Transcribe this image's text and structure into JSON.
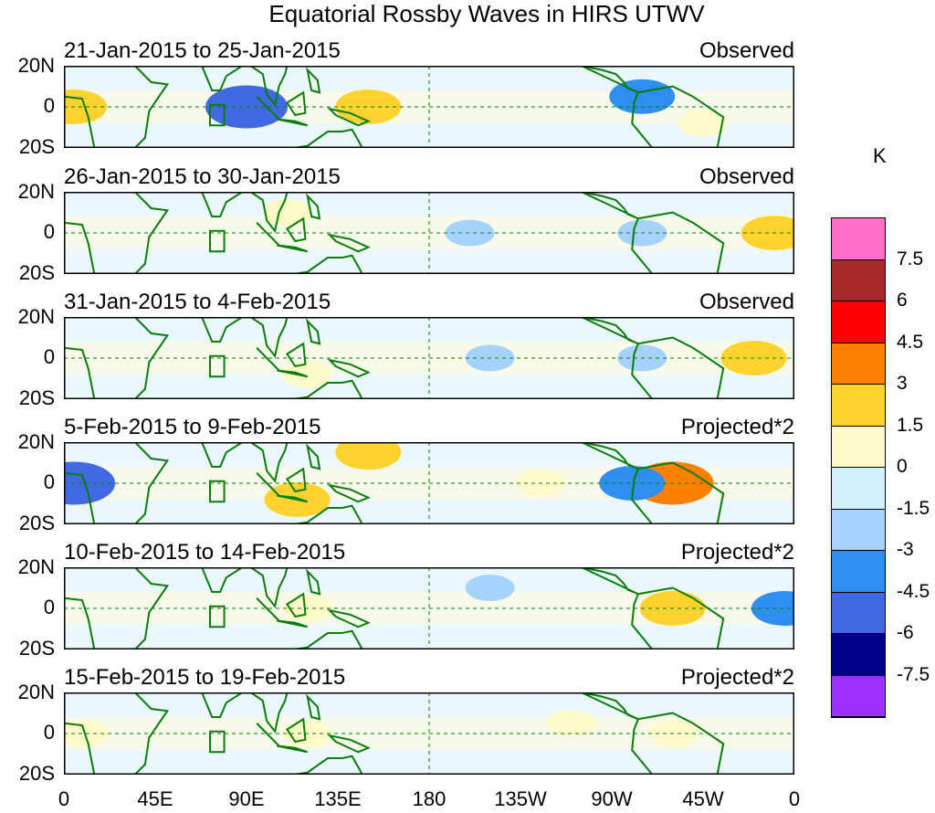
{
  "title": "Equatorial Rossby Waves in HIRS UTWV",
  "latitude_labels": [
    "20N",
    "0",
    "20S"
  ],
  "longitude_labels": [
    "0",
    "45E",
    "90E",
    "135E",
    "180",
    "135W",
    "90W",
    "45W",
    "0"
  ],
  "panels": [
    {
      "date_range": "21-Jan-2015 to 25-Jan-2015",
      "kind": "Observed",
      "anomalies": [
        {
          "lon": 90,
          "lat": 0,
          "v": -4.5
        },
        {
          "lon": 150,
          "lat": 0,
          "v": 3
        },
        {
          "lon": 285,
          "lat": 5,
          "v": -3
        },
        {
          "lon": 315,
          "lat": -8,
          "v": 1.5
        },
        {
          "lon": 5,
          "lat": 0,
          "v": 3
        }
      ]
    },
    {
      "date_range": "26-Jan-2015 to 30-Jan-2015",
      "kind": "Observed",
      "anomalies": [
        {
          "lon": 110,
          "lat": 10,
          "v": 1.5
        },
        {
          "lon": 200,
          "lat": 0,
          "v": -1.5
        },
        {
          "lon": 285,
          "lat": 0,
          "v": -1.5
        },
        {
          "lon": 350,
          "lat": 0,
          "v": 3
        }
      ]
    },
    {
      "date_range": "31-Jan-2015 to 4-Feb-2015",
      "kind": "Observed",
      "anomalies": [
        {
          "lon": 120,
          "lat": -8,
          "v": 1.5
        },
        {
          "lon": 210,
          "lat": 0,
          "v": -1.5
        },
        {
          "lon": 285,
          "lat": 0,
          "v": -1.5
        },
        {
          "lon": 340,
          "lat": 0,
          "v": 3
        }
      ]
    },
    {
      "date_range": "5-Feb-2015 to 9-Feb-2015",
      "kind": "Projected*2",
      "anomalies": [
        {
          "lon": 5,
          "lat": 0,
          "v": -4.5
        },
        {
          "lon": 115,
          "lat": -8,
          "v": 3
        },
        {
          "lon": 150,
          "lat": 15,
          "v": 3
        },
        {
          "lon": 300,
          "lat": 0,
          "v": 4.5
        },
        {
          "lon": 280,
          "lat": 0,
          "v": -3
        },
        {
          "lon": 235,
          "lat": 0,
          "v": 1.5
        }
      ]
    },
    {
      "date_range": "10-Feb-2015 to 14-Feb-2015",
      "kind": "Projected*2",
      "anomalies": [
        {
          "lon": 120,
          "lat": 0,
          "v": 1.5
        },
        {
          "lon": 210,
          "lat": 10,
          "v": -1.5
        },
        {
          "lon": 300,
          "lat": 0,
          "v": 3
        },
        {
          "lon": 355,
          "lat": 0,
          "v": -3
        }
      ]
    },
    {
      "date_range": "15-Feb-2015 to 19-Feb-2015",
      "kind": "Projected*2",
      "anomalies": [
        {
          "lon": 10,
          "lat": 0,
          "v": 1.5
        },
        {
          "lon": 120,
          "lat": 0,
          "v": 1.5
        },
        {
          "lon": 250,
          "lat": 5,
          "v": 1.5
        },
        {
          "lon": 300,
          "lat": 0,
          "v": 1.5
        }
      ]
    }
  ],
  "colorbar": {
    "unit": "K",
    "labels": [
      "7.5",
      "6",
      "4.5",
      "3",
      "1.5",
      "0",
      "-1.5",
      "-3",
      "-4.5",
      "-6",
      "-7.5"
    ],
    "colors": [
      "#ff6ec7",
      "#a52a2a",
      "#ff0000",
      "#ff7f00",
      "#ffd22e",
      "#fffac8",
      "#d2f0ff",
      "#a5d2ff",
      "#2f8ff0",
      "#4169e1",
      "#00008b",
      "#9b30ff"
    ]
  },
  "colors": {
    "coast": "#0a7d0a",
    "grid": "#0a7d0a"
  }
}
